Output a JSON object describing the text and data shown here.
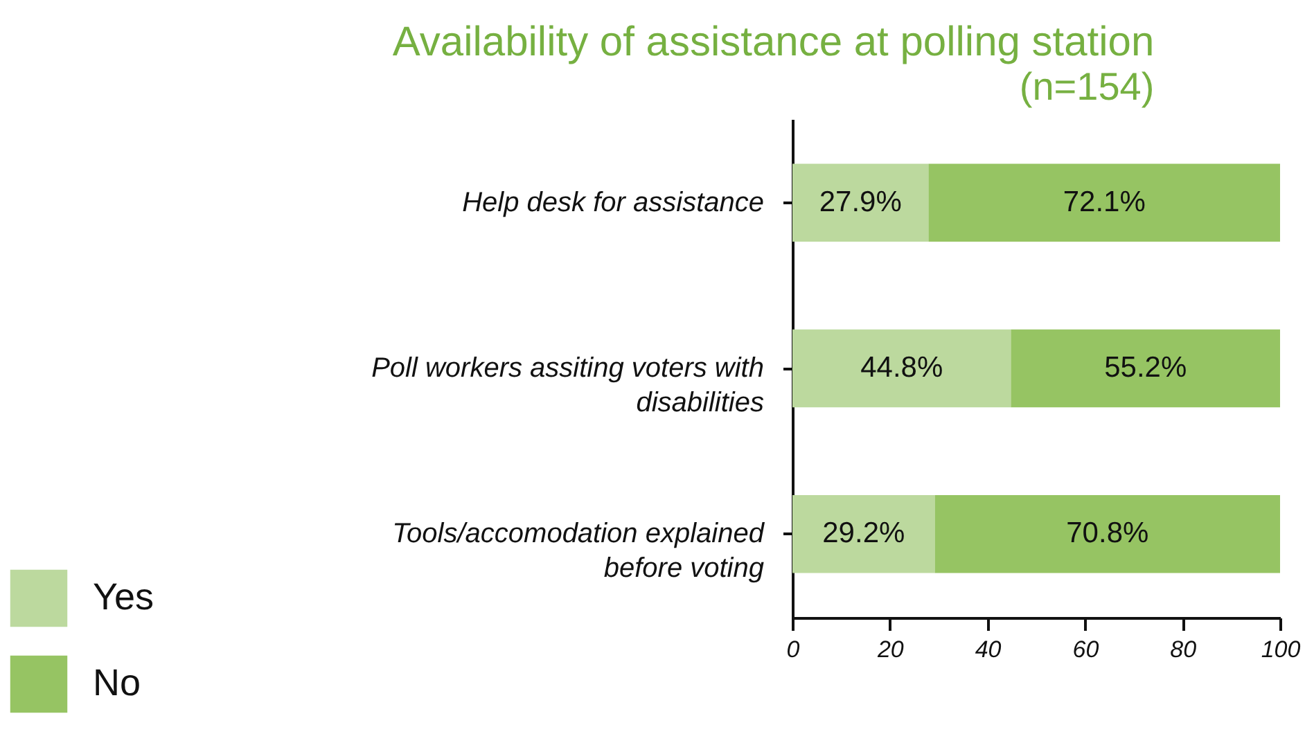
{
  "chart_data": {
    "type": "bar",
    "orientation": "horizontal",
    "stacked": true,
    "title": "Availability of assistance at polling station",
    "subtitle": "(n=154)",
    "categories": [
      "Help desk for assistance",
      "Poll workers assiting voters with disabilities",
      "Tools/accomodation explained before voting"
    ],
    "series": [
      {
        "name": "Yes",
        "color": "#bcd99e",
        "values": [
          27.9,
          44.8,
          29.2
        ],
        "value_labels": [
          "27.9%",
          "44.8%",
          "29.2%"
        ]
      },
      {
        "name": "No",
        "color": "#96c463",
        "values": [
          72.1,
          55.2,
          70.8
        ],
        "value_labels": [
          "72.1%",
          "55.2%",
          "70.8%"
        ]
      }
    ],
    "xlim": [
      0,
      100
    ],
    "xticks": [
      0,
      20,
      40,
      60,
      80,
      100
    ],
    "grid": false,
    "legend": "bottom left"
  }
}
